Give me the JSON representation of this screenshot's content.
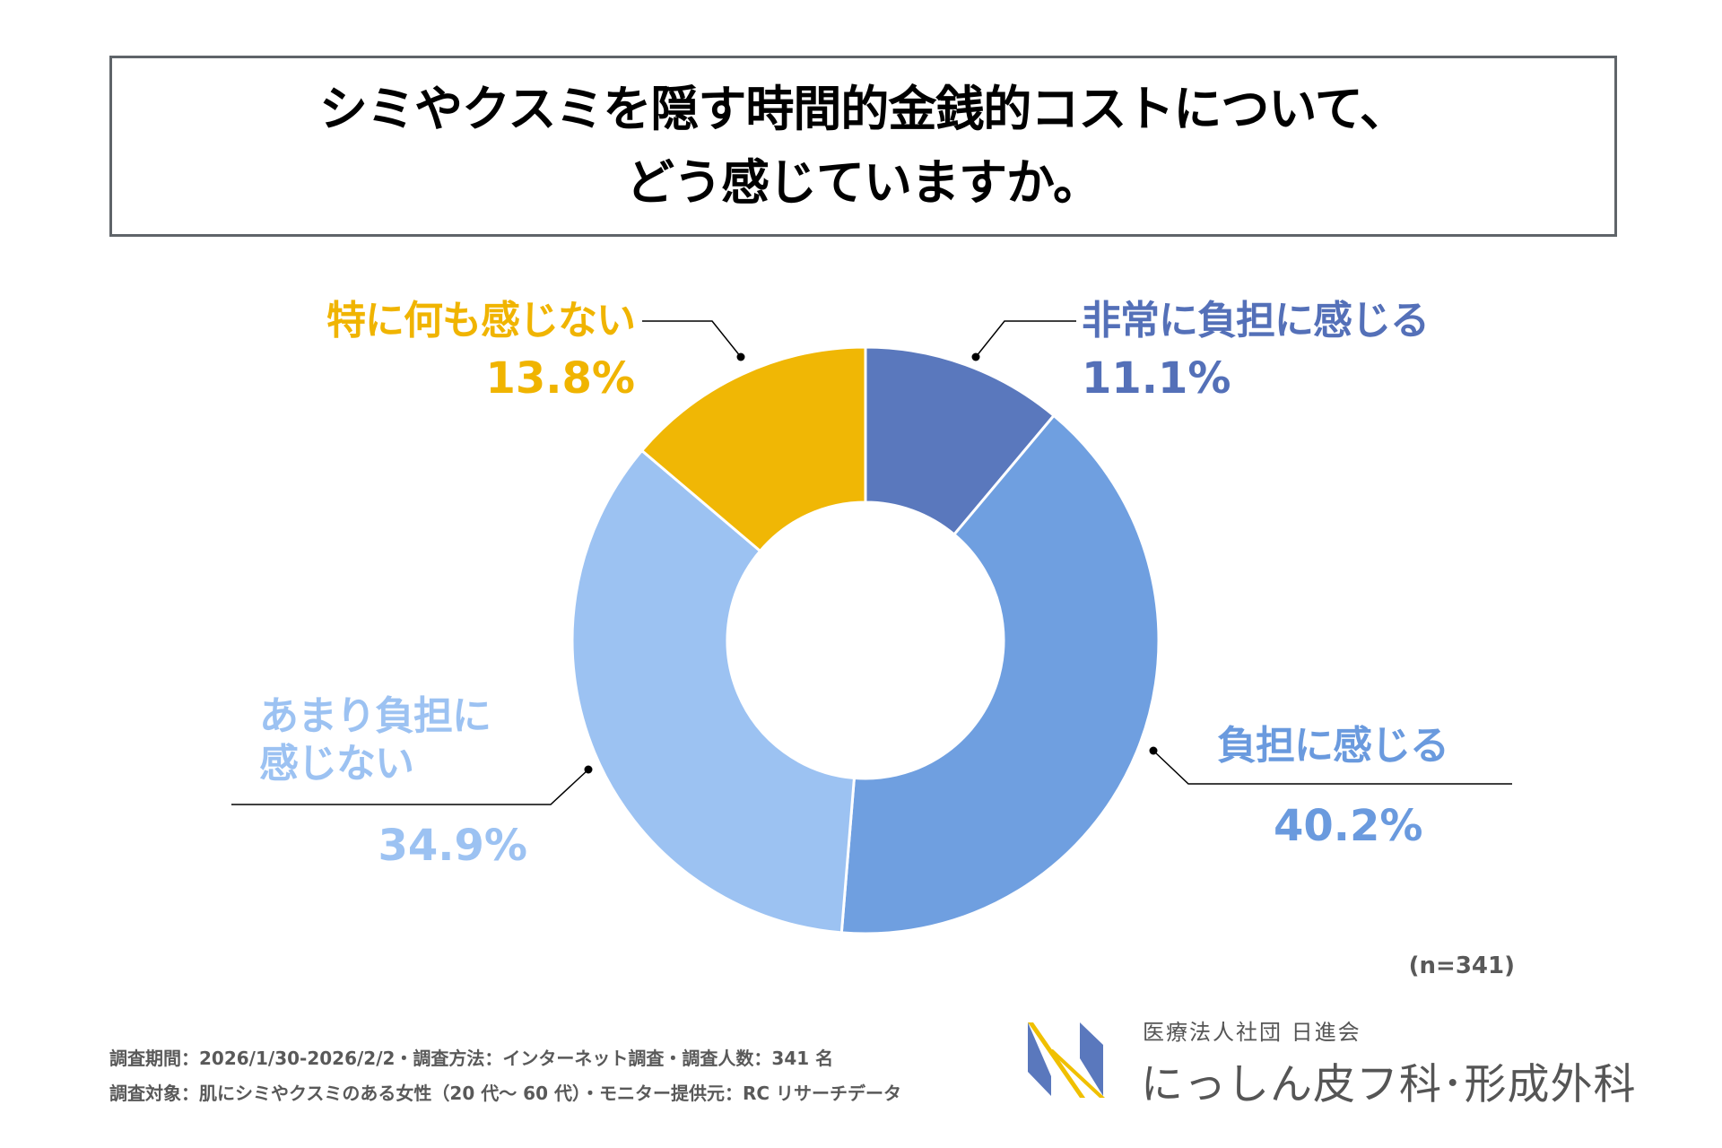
{
  "title": {
    "line1": "シミやクスミを隠す時間的金銭的コストについて、",
    "line2": "どう感じていますか。"
  },
  "chart_data": {
    "type": "donut",
    "title": "シミやクスミを隠す時間的金銭的コストについて、どう感じていますか。",
    "categories": [
      "非常に負担に感じる",
      "負担に感じる",
      "あまり負担に感じない",
      "特に何も感じない"
    ],
    "values": [
      11.1,
      40.2,
      34.9,
      13.8
    ],
    "unit": "%",
    "colors": [
      "#5a78bd",
      "#6f9fe0",
      "#9cc2f2",
      "#f0b705"
    ],
    "start": "top",
    "direction": "clockwise",
    "sample_size": "(n=341)"
  },
  "labels": {
    "very_burden": {
      "name": "非常に負担に感じる",
      "pct": "11.1%"
    },
    "burden": {
      "name": "負担に感じる",
      "pct": "40.2%"
    },
    "not_much_line1": "あまり負担に",
    "not_much_line2": "感じない",
    "not_much_pct": "34.9%",
    "nothing": {
      "name": "特に何も感じない",
      "pct": "13.8%"
    }
  },
  "footer": {
    "line1": "調査期間：2026/1/30-2026/2/2・調査方法：インターネット調査・調査人数：341 名",
    "line2": "調査対象：肌にシミやクスミのある女性（20 代～ 60 代）・モニター提供元：RC リサーチデータ"
  },
  "logo": {
    "org": "医療法人社団 日進会",
    "clinic": "にっしん皮フ科･形成外科"
  }
}
